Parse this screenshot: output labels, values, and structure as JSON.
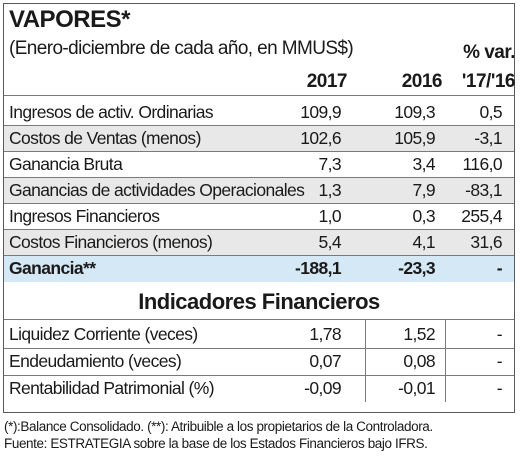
{
  "title": "VAPORES*",
  "subtitle": "(Enero-diciembre de cada año, en MMUS$)",
  "columns": {
    "y2017": "2017",
    "y2016": "2016",
    "var_top": "% var.",
    "var_bottom": "'17/'16"
  },
  "rows": [
    {
      "label": "Ingresos de activ. Ordinarias",
      "v2017": "109,9",
      "v2016": "109,3",
      "var": "0,5"
    },
    {
      "label": "Costos de Ventas (menos)",
      "v2017": "102,6",
      "v2016": "105,9",
      "var": "-3,1"
    },
    {
      "label": "Ganancia Bruta",
      "v2017": "7,3",
      "v2016": "3,4",
      "var": "116,0"
    },
    {
      "label": "Ganancias de actividades Operacionales",
      "v2017": "1,3",
      "v2016": "7,9",
      "var": "-83,1"
    },
    {
      "label": "Ingresos Financieros",
      "v2017": "1,0",
      "v2016": "0,3",
      "var": "255,4"
    },
    {
      "label": "Costos Financieros (menos)",
      "v2017": "5,4",
      "v2016": "4,1",
      "var": "31,6"
    }
  ],
  "total": {
    "label": "Ganancia**",
    "v2017": "-188,1",
    "v2016": "-23,3",
    "var": "-"
  },
  "section_title": "Indicadores Financieros",
  "indicators": [
    {
      "label": "Liquidez Corriente (veces)",
      "v2017": "1,78",
      "v2016": "1,52",
      "var": "-"
    },
    {
      "label": "Endeudamiento (veces)",
      "v2017": "0,07",
      "v2016": "0,08",
      "var": "-"
    },
    {
      "label": "Rentabilidad Patrimonial (%)",
      "v2017": "-0,09",
      "v2016": "-0,01",
      "var": "-"
    }
  ],
  "footnotes": [
    "(*):Balance Consolidado. (**): Atribuible a los propietarios de la Controladora.",
    "Fuente: ESTRATEGIA sobre la base de los Estados Financieros bajo IFRS."
  ],
  "colors": {
    "highlight": "#d4e9f5",
    "stripe": "#e8e8e8",
    "border": "#5a5a5a"
  }
}
